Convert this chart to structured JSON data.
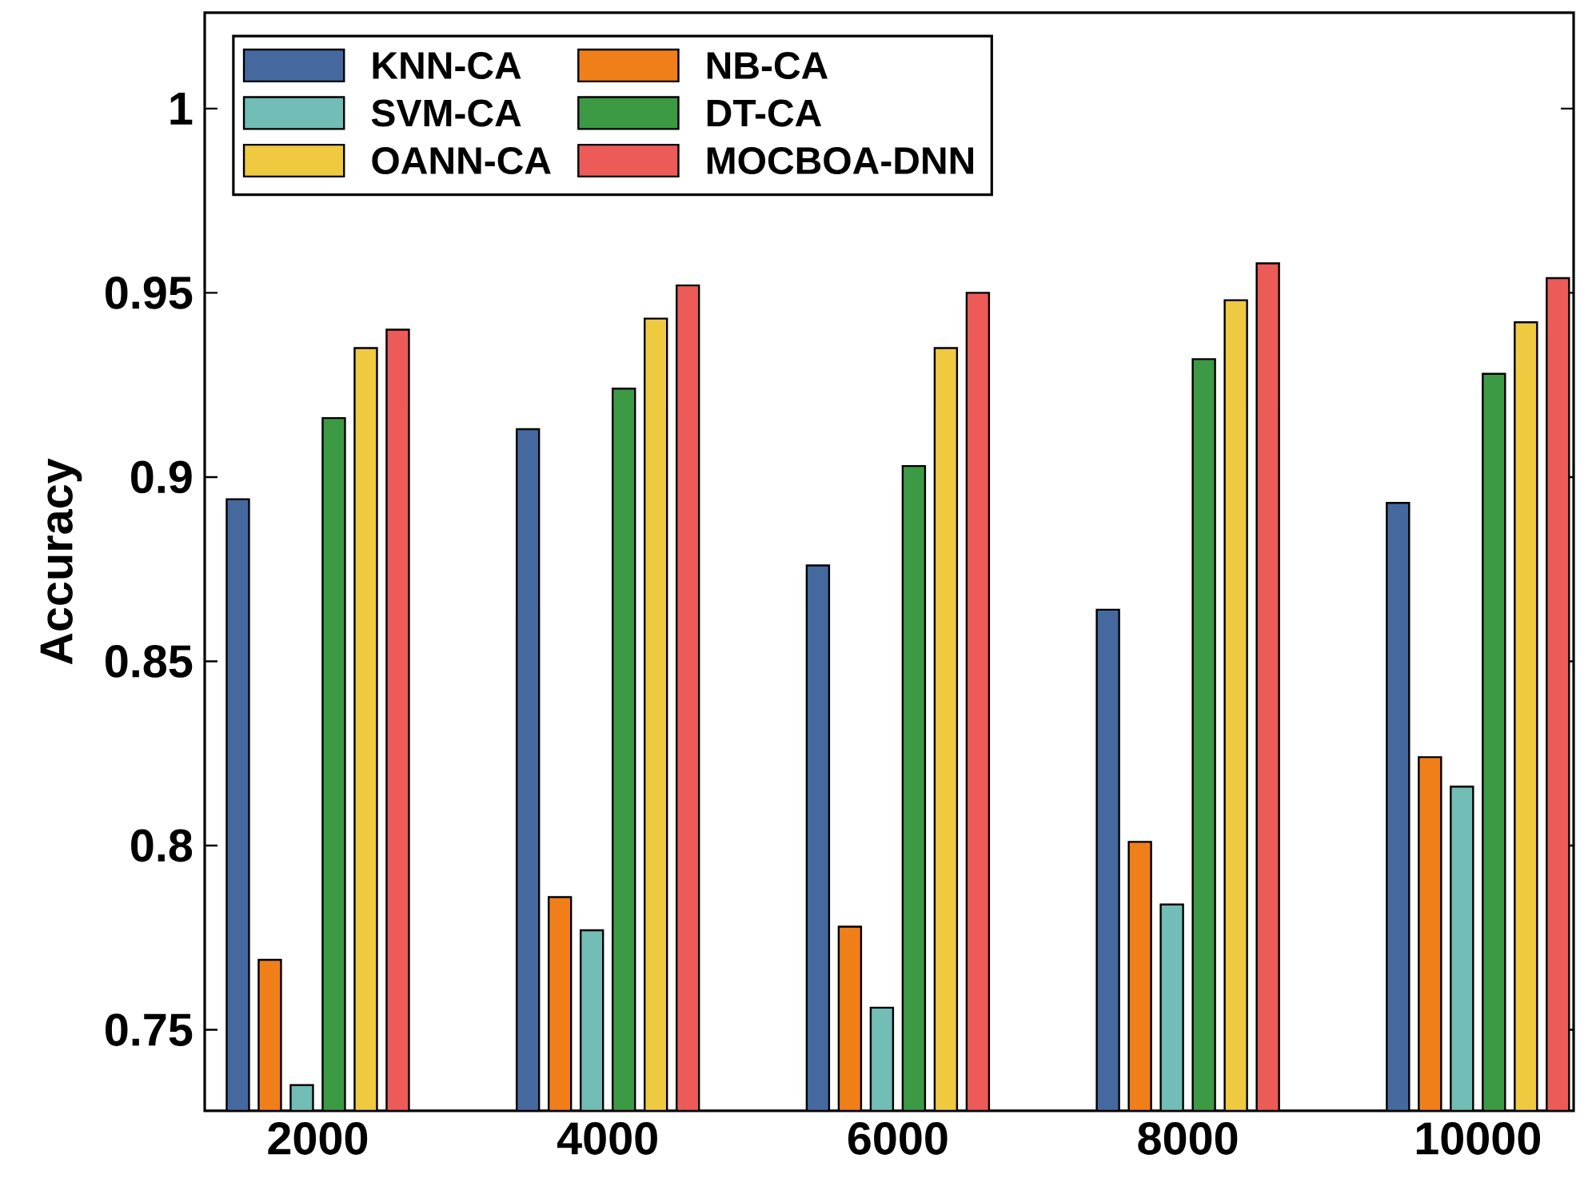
{
  "chart_data": {
    "type": "bar",
    "ylabel": "Accuracy",
    "categories": [
      "2000",
      "4000",
      "6000",
      "8000",
      "10000"
    ],
    "series": [
      {
        "name": "KNN-CA",
        "color": "#45699e",
        "values": [
          0.894,
          0.913,
          0.876,
          0.864,
          0.893
        ]
      },
      {
        "name": "NB-CA",
        "color": "#f07f1a",
        "values": [
          0.769,
          0.786,
          0.778,
          0.801,
          0.824
        ]
      },
      {
        "name": "SVM-CA",
        "color": "#72bdb5",
        "values": [
          0.735,
          0.777,
          0.756,
          0.784,
          0.816
        ]
      },
      {
        "name": "DT-CA",
        "color": "#3c9a44",
        "values": [
          0.916,
          0.924,
          0.903,
          0.932,
          0.928
        ]
      },
      {
        "name": "OANN-CA",
        "color": "#efc93f",
        "values": [
          0.935,
          0.943,
          0.935,
          0.948,
          0.942
        ]
      },
      {
        "name": "MOCBOA-DNN",
        "color": "#ec5b57",
        "values": [
          0.94,
          0.952,
          0.95,
          0.958,
          0.954
        ]
      }
    ],
    "ylim": [
      0.728,
      1.026
    ],
    "yticks": [
      0.75,
      0.8,
      0.85,
      0.9,
      0.95,
      1
    ],
    "legend": "top left",
    "grid": false
  }
}
